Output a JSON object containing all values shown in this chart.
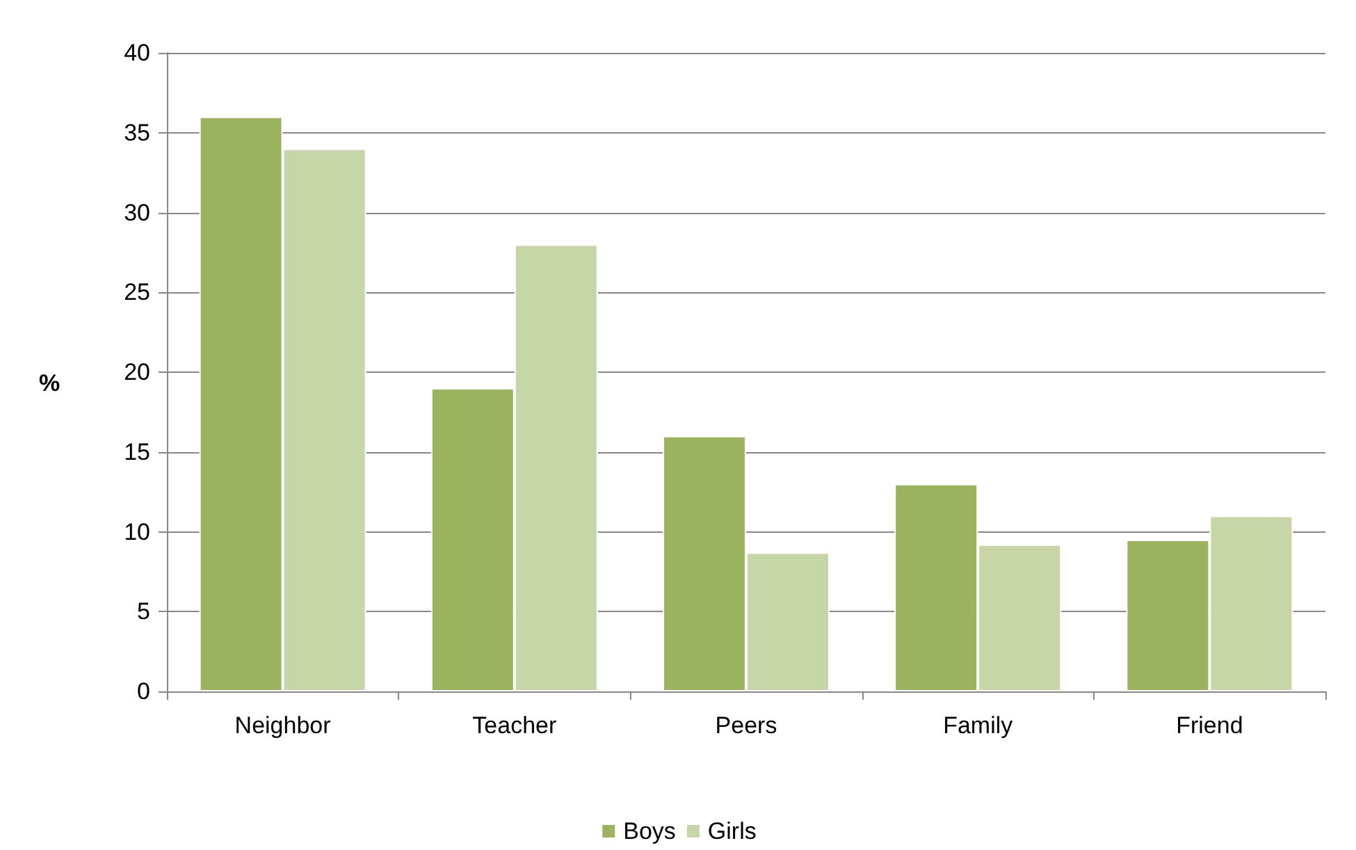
{
  "chart_data": {
    "type": "bar",
    "ylabel": "%",
    "categories": [
      "Neighbor",
      "Teacher",
      "Peers",
      "Family",
      "Friend"
    ],
    "series": [
      {
        "name": "Boys",
        "color": "#9bb35f",
        "values": [
          36,
          19,
          16,
          13,
          9.5
        ]
      },
      {
        "name": "Girls",
        "color": "#c6d6a6",
        "values": [
          34,
          28,
          8.7,
          9.2,
          11
        ]
      }
    ],
    "ylim": [
      0,
      40
    ],
    "yticks": [
      0,
      5,
      10,
      15,
      20,
      25,
      30,
      35,
      40
    ],
    "grid": "y",
    "legend": "bottom"
  }
}
